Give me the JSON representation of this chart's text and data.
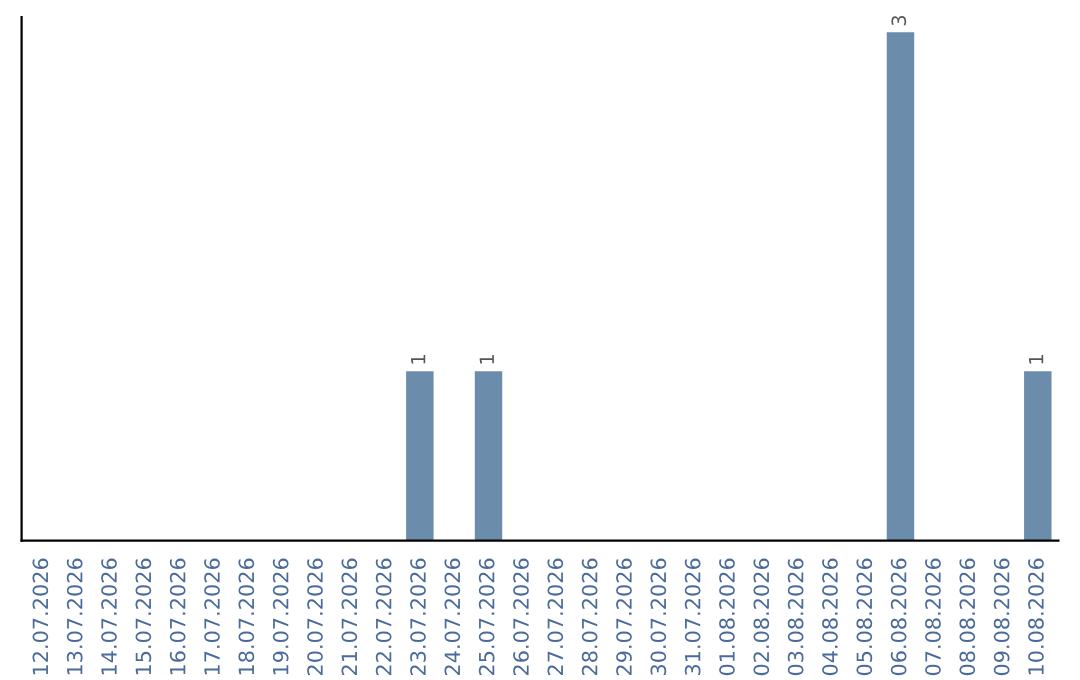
{
  "chart_data": {
    "type": "bar",
    "categories": [
      "12.07.2026",
      "13.07.2026",
      "14.07.2026",
      "15.07.2026",
      "16.07.2026",
      "17.07.2026",
      "18.07.2026",
      "19.07.2026",
      "20.07.2026",
      "21.07.2026",
      "22.07.2026",
      "23.07.2026",
      "24.07.2026",
      "25.07.2026",
      "26.07.2026",
      "27.07.2026",
      "28.07.2026",
      "29.07.2026",
      "30.07.2026",
      "31.07.2026",
      "01.08.2026",
      "02.08.2026",
      "03.08.2026",
      "04.08.2026",
      "05.08.2026",
      "06.08.2026",
      "07.08.2026",
      "08.08.2026",
      "09.08.2026",
      "10.08.2026"
    ],
    "values": [
      0,
      0,
      0,
      0,
      0,
      0,
      0,
      0,
      0,
      0,
      0,
      1,
      0,
      1,
      0,
      0,
      0,
      0,
      0,
      0,
      0,
      0,
      0,
      0,
      0,
      3,
      0,
      0,
      0,
      1
    ],
    "value_labels": [
      null,
      null,
      null,
      null,
      null,
      null,
      null,
      null,
      null,
      null,
      null,
      "1",
      null,
      "1",
      null,
      null,
      null,
      null,
      null,
      null,
      null,
      null,
      null,
      null,
      null,
      "3",
      null,
      null,
      null,
      "1"
    ],
    "color": "#6b8cab",
    "grid": false,
    "legend": false
  }
}
